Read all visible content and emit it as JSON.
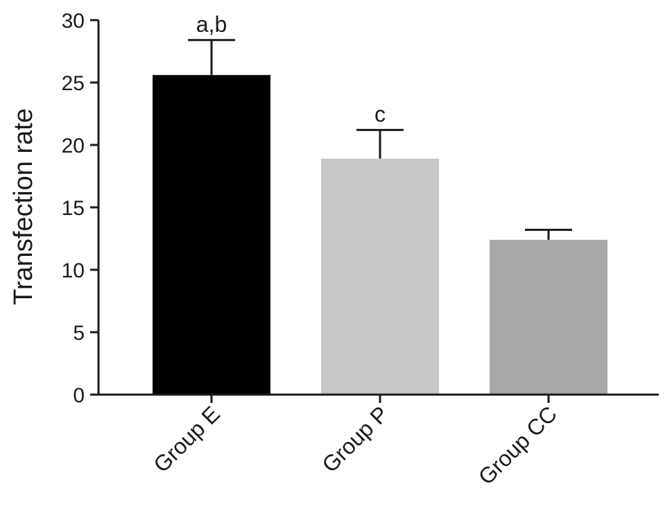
{
  "chart_data": {
    "type": "bar",
    "title": "",
    "xlabel": "",
    "ylabel": "Transfection rate",
    "categories": [
      "Group E",
      "Group P",
      "Group CC"
    ],
    "values": [
      25.6,
      18.9,
      12.4
    ],
    "errors": [
      2.8,
      2.3,
      0.8
    ],
    "annotations": [
      "a,b",
      "c",
      ""
    ],
    "colors": [
      "#000000",
      "#c8c8c8",
      "#a8a8a8"
    ],
    "ylim": [
      0,
      30
    ],
    "yticks": [
      0,
      5,
      10,
      15,
      20,
      25,
      30
    ],
    "grid": false,
    "legend": "none"
  }
}
